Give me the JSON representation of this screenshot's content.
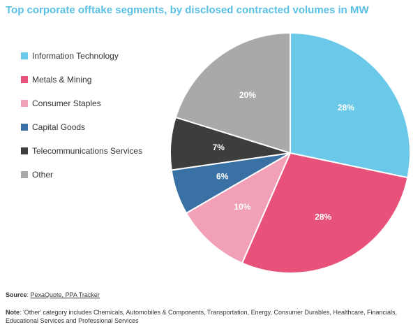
{
  "title": "Top corporate offtake segments, by disclosed contracted volumes in MW",
  "chart_data": {
    "type": "pie",
    "title": "Top corporate offtake segments, by disclosed contracted volumes in MW",
    "slices": [
      {
        "label": "Information Technology",
        "value": 28,
        "text": "28%",
        "color": "#6ac8e8"
      },
      {
        "label": "Metals & Mining",
        "value": 28,
        "text": "28%",
        "color": "#e8527a"
      },
      {
        "label": "Consumer Staples",
        "value": 10,
        "text": "10%",
        "color": "#f1a0b8"
      },
      {
        "label": "Capital Goods",
        "value": 6,
        "text": "6%",
        "color": "#3a71a4"
      },
      {
        "label": "Telecommunications Services",
        "value": 7,
        "text": "7%",
        "color": "#3d3d3d"
      },
      {
        "label": "Other",
        "value": 20,
        "text": "20%",
        "color": "#a9a9a9"
      }
    ],
    "legend_position": "left"
  },
  "footer": {
    "source_label": "Source",
    "source_sep": ": ",
    "source_link": "PexaQuote, PPA Tracker",
    "note_label": "Note",
    "note_text": ": 'Other' category includes Chemicals, Automobiles & Components, Transportation, Energy, Consumer Durables, Healthcare, Financials, Educational Services and Professional Services"
  }
}
